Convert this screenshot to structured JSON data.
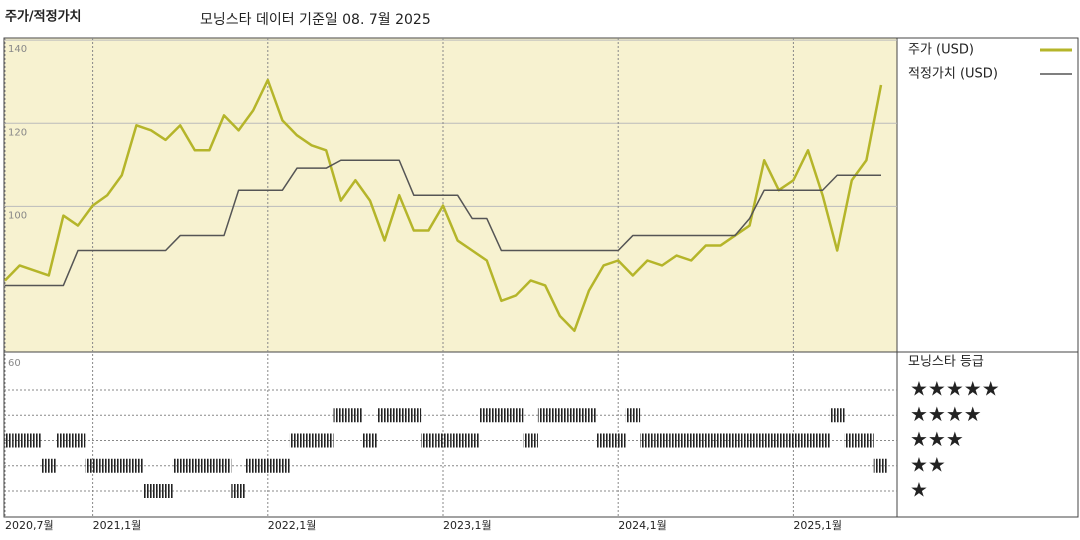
{
  "header": {
    "title": "주가/적정가치",
    "subtitle": "모닝스타 데이터 기준일 08. 7월 2025"
  },
  "chart_data": [
    {
      "type": "line",
      "x": [
        "2020,7월",
        null,
        null,
        null,
        null,
        null,
        "2021,1월",
        null,
        null,
        null,
        null,
        null,
        null,
        null,
        null,
        null,
        null,
        null,
        "2022,1월",
        null,
        null,
        null,
        null,
        null,
        null,
        null,
        null,
        null,
        null,
        null,
        "2023,1월",
        null,
        null,
        null,
        null,
        null,
        null,
        null,
        null,
        null,
        null,
        null,
        "2024,1월",
        null,
        null,
        null,
        null,
        null,
        null,
        null,
        null,
        null,
        null,
        null,
        "2025,1월",
        null,
        null,
        null,
        null,
        null,
        null
      ],
      "series": [
        {
          "name": "주가 (USD)",
          "color": "#b5b52a",
          "values": [
            82.2,
            85.8,
            84.6,
            83.4,
            97.8,
            95.4,
            100.2,
            102.7,
            107.5,
            119.5,
            118.3,
            116,
            119.5,
            113.5,
            113.5,
            121.9,
            118.3,
            123.1,
            130.4,
            120.7,
            117.1,
            114.7,
            113.5,
            101.4,
            106.3,
            101.4,
            91.8,
            102.7,
            94.2,
            94.2,
            100.2,
            91.8,
            89.4,
            87.0,
            77.3,
            78.6,
            82.2,
            81.0,
            73.7,
            70.1,
            79.8,
            85.8,
            87.0,
            83.4,
            87.0,
            85.8,
            88.2,
            87.0,
            90.6,
            90.6,
            93.0,
            95.4,
            111.1,
            103.9,
            106.3,
            113.5,
            102.7,
            89.4,
            106.3,
            111.1,
            129.2
          ]
        },
        {
          "name": "적정가치 (USD)",
          "color": "#555555",
          "values": [
            81,
            81,
            81,
            81,
            81,
            89.4,
            89.4,
            89.4,
            89.4,
            89.4,
            89.4,
            89.4,
            93,
            93,
            93,
            93,
            103.9,
            103.9,
            103.9,
            103.9,
            109.2,
            109.2,
            109.2,
            111.1,
            111.1,
            111.1,
            111.1,
            111.1,
            102.7,
            102.7,
            102.7,
            102.7,
            97.1,
            97.1,
            89.4,
            89.4,
            89.4,
            89.4,
            89.4,
            89.4,
            89.4,
            89.4,
            89.4,
            93,
            93,
            93,
            93,
            93,
            93,
            93,
            93,
            97.1,
            103.9,
            103.9,
            103.9,
            103.9,
            103.9,
            107.5,
            107.5,
            107.5,
            107.5
          ]
        }
      ],
      "ylim": [
        65,
        140.5
      ],
      "yticks": [
        140,
        120,
        100
      ],
      "grid": true,
      "legend": "right"
    },
    {
      "type": "rating",
      "axis_label": "60",
      "legend_title": "모닝스타 등급",
      "levels": [
        {
          "value": 5,
          "label": "★★★★★"
        },
        {
          "value": 4,
          "label": "★★★★"
        },
        {
          "value": 3,
          "label": "★★★"
        },
        {
          "value": 2,
          "label": "★★"
        },
        {
          "value": 1,
          "label": "★"
        }
      ],
      "color": "#222222",
      "values": [
        3,
        3,
        3,
        2,
        3,
        3,
        2,
        2,
        2,
        2,
        1,
        1,
        2,
        2,
        2,
        2,
        1,
        2,
        2,
        2,
        3,
        3,
        3,
        4,
        4,
        3,
        4,
        4,
        4,
        3,
        3,
        3,
        3,
        4,
        4,
        4,
        3,
        4,
        4,
        4,
        4,
        3,
        3,
        4,
        3,
        3,
        3,
        3,
        3,
        3,
        3,
        3,
        3,
        3,
        3,
        3,
        3,
        4,
        3,
        3,
        2
      ]
    }
  ]
}
